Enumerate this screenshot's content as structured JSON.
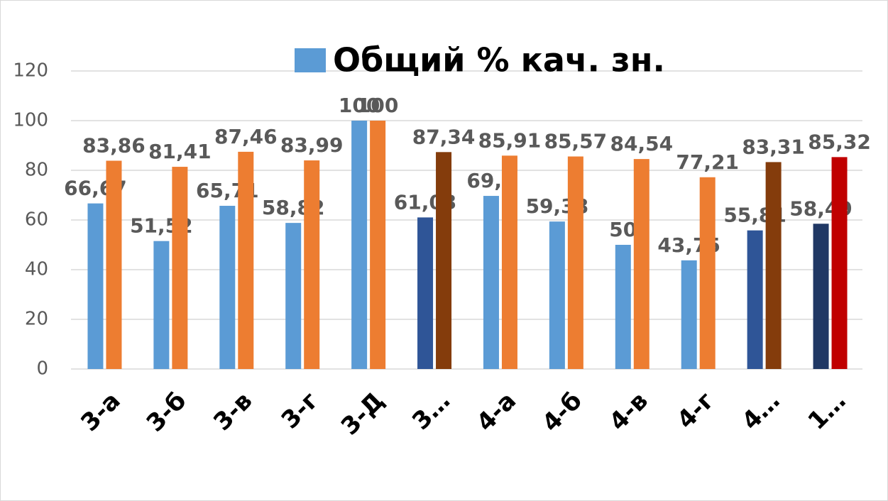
{
  "chart_data": {
    "type": "bar",
    "categories": [
      "3-а",
      "3-б",
      "3-в",
      "3-г",
      "3-Д",
      "3…",
      "4-а",
      "4-б",
      "4-в",
      "4-г",
      "4…",
      "1…"
    ],
    "series": [
      {
        "name": "Общий % кач. зн.",
        "color": "#5b9bd5",
        "colors": [
          "#5b9bd5",
          "#5b9bd5",
          "#5b9bd5",
          "#5b9bd5",
          "#5b9bd5",
          "#2f5597",
          "#5b9bd5",
          "#5b9bd5",
          "#5b9bd5",
          "#5b9bd5",
          "#2f5597",
          "#203864"
        ],
        "values": [
          66.67,
          51.52,
          65.71,
          58.82,
          100,
          61.03,
          69.7,
          59.38,
          50,
          43.75,
          55.81,
          58.49
        ],
        "value_labels": [
          "66,67",
          "51,52",
          "65,71",
          "58,82",
          "100",
          "61,03",
          "69,7",
          "59,38",
          "50",
          "43,75",
          "55,81",
          "58,49"
        ]
      },
      {
        "color": "#ed7d31",
        "colors": [
          "#ed7d31",
          "#ed7d31",
          "#ed7d31",
          "#ed7d31",
          "#ed7d31",
          "#843c0c",
          "#ed7d31",
          "#ed7d31",
          "#ed7d31",
          "#ed7d31",
          "#843c0c",
          "#c00000"
        ],
        "values": [
          83.86,
          81.41,
          87.46,
          83.99,
          100,
          87.34,
          85.91,
          85.57,
          84.54,
          77.21,
          83.31,
          85.32
        ],
        "value_labels": [
          "83,86",
          "81,41",
          "87,46",
          "83,99",
          "100",
          "87,34",
          "85,91",
          "85,57",
          "84,54",
          "77,21",
          "83,31",
          "85,32"
        ]
      }
    ],
    "ylim": [
      0,
      120
    ],
    "yticks": [
      0,
      20,
      40,
      60,
      80,
      100,
      120
    ],
    "grid": true,
    "legend": "top"
  }
}
